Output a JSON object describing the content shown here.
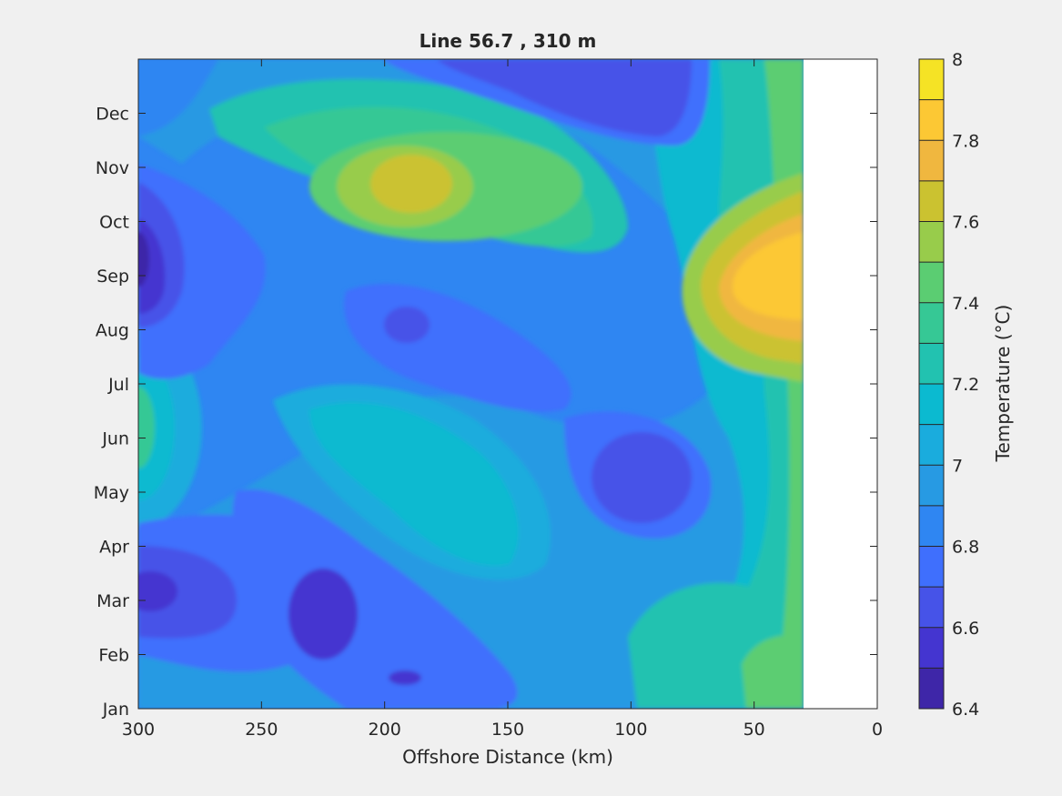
{
  "chart_data": {
    "type": "heatmap",
    "subtype": "filled contour",
    "title": "Line 56.7 , 310 m",
    "xlabel": "Offshore Distance (km)",
    "ylabel": "",
    "x_reversed": true,
    "xlim": [
      300,
      0
    ],
    "x_ticks": [
      300,
      250,
      200,
      150,
      100,
      50,
      0
    ],
    "y_ticks": [
      "Jan",
      "Feb",
      "Mar",
      "Apr",
      "May",
      "Jun",
      "Jul",
      "Aug",
      "Sep",
      "Oct",
      "Nov",
      "Dec"
    ],
    "data_x_range": [
      300,
      30
    ],
    "colorbar": {
      "label": "Temperature (°C)",
      "limits": [
        6.4,
        8.0
      ],
      "tick_labels": [
        "6.4",
        "6.6",
        "6.8",
        "7",
        "7.2",
        "7.4",
        "7.6",
        "7.8",
        "8"
      ],
      "levels": [
        6.4,
        6.5,
        6.6,
        6.7,
        6.8,
        6.9,
        7.0,
        7.1,
        7.2,
        7.3,
        7.4,
        7.5,
        7.6,
        7.7,
        7.8,
        7.9,
        8.0
      ],
      "colors": [
        "#3e26a8",
        "#4435d0",
        "#4653e8",
        "#3f6ffd",
        "#2f86f2",
        "#279ae3",
        "#1aacdd",
        "#0bbad0",
        "#22c2b0",
        "#36c895",
        "#5bcd72",
        "#98cc4b",
        "#cbc230",
        "#f0b73f",
        "#fcc834",
        "#f5e325"
      ]
    },
    "features": [
      {
        "kind": "warm",
        "x_km": 190,
        "month": "Nov",
        "approx_value": 7.6
      },
      {
        "kind": "warm",
        "x_km": 35,
        "month": "Sep",
        "approx_value": 7.9
      },
      {
        "kind": "cold",
        "x_km": 295,
        "month": "Sep",
        "approx_value": 6.5
      },
      {
        "kind": "cold",
        "x_km": 295,
        "month": "Mar",
        "approx_value": 6.5
      },
      {
        "kind": "cold",
        "x_km": 220,
        "month": "Mar",
        "approx_value": 6.6
      },
      {
        "kind": "cold",
        "x_km": 100,
        "month": "May",
        "approx_value": 6.7
      },
      {
        "kind": "cold",
        "x_km": 140,
        "month": "Dec",
        "approx_value": 6.7
      },
      {
        "kind": "warm",
        "x_km": 298,
        "month": "Jun",
        "approx_value": 7.3
      },
      {
        "kind": "warm",
        "x_km": 45,
        "month": "Jan",
        "approx_value": 7.4
      }
    ]
  },
  "colors": {
    "figure_bg": "#f0f0f0",
    "no_data": "#ffffff",
    "axes": "#262626"
  }
}
